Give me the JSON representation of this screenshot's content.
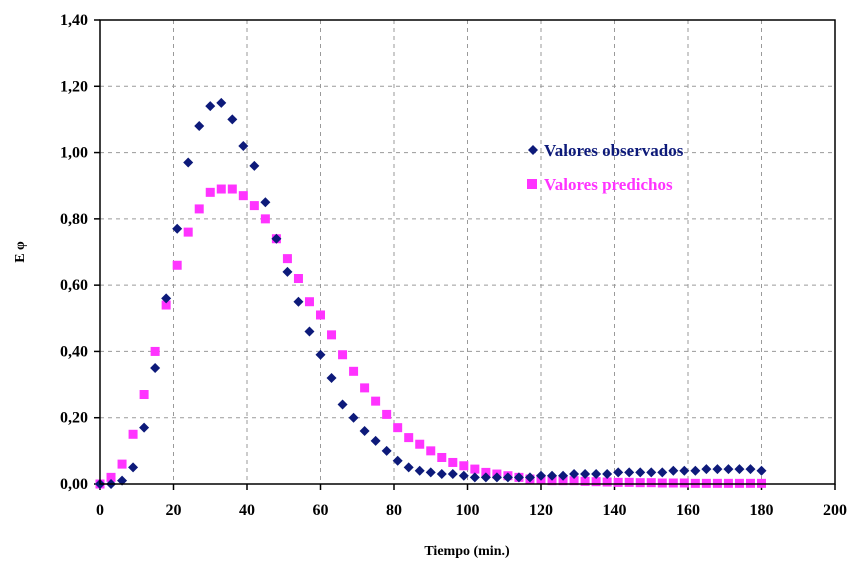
{
  "chart_data": {
    "type": "scatter",
    "xlabel": "Tiempo (min.)",
    "ylabel": "E φ",
    "xlim": [
      0,
      200
    ],
    "ylim": [
      0,
      1.4
    ],
    "x_ticks": [
      "0",
      "20",
      "40",
      "60",
      "80",
      "100",
      "120",
      "140",
      "160",
      "180",
      "200"
    ],
    "y_ticks": [
      "0,00",
      "0,20",
      "0,40",
      "0,60",
      "0,80",
      "1,00",
      "1,20",
      "1,40"
    ],
    "grid": true,
    "legend_position": "right",
    "series": [
      {
        "name": "Valores observados",
        "marker": "diamond",
        "color": "#0d1a7a",
        "x": [
          0,
          3,
          6,
          9,
          12,
          15,
          18,
          21,
          24,
          27,
          30,
          33,
          36,
          39,
          42,
          45,
          48,
          51,
          54,
          57,
          60,
          63,
          66,
          69,
          72,
          75,
          78,
          81,
          84,
          87,
          90,
          93,
          96,
          99,
          102,
          105,
          108,
          111,
          114,
          117,
          120,
          123,
          126,
          129,
          132,
          135,
          138,
          141,
          144,
          147,
          150,
          153,
          156,
          159,
          162,
          165,
          168,
          171,
          174,
          177,
          180
        ],
        "y": [
          0.0,
          0.0,
          0.01,
          0.05,
          0.17,
          0.35,
          0.56,
          0.77,
          0.97,
          1.08,
          1.14,
          1.15,
          1.1,
          1.02,
          0.96,
          0.85,
          0.74,
          0.64,
          0.55,
          0.46,
          0.39,
          0.32,
          0.24,
          0.2,
          0.16,
          0.13,
          0.1,
          0.07,
          0.05,
          0.04,
          0.035,
          0.03,
          0.03,
          0.025,
          0.02,
          0.02,
          0.02,
          0.02,
          0.02,
          0.02,
          0.025,
          0.025,
          0.025,
          0.03,
          0.03,
          0.03,
          0.03,
          0.035,
          0.035,
          0.035,
          0.035,
          0.035,
          0.04,
          0.04,
          0.04,
          0.045,
          0.045,
          0.045,
          0.045,
          0.045,
          0.04
        ]
      },
      {
        "name": "Valores predichos",
        "marker": "square",
        "color": "#ff33ff",
        "x": [
          0,
          3,
          6,
          9,
          12,
          15,
          18,
          21,
          24,
          27,
          30,
          33,
          36,
          39,
          42,
          45,
          48,
          51,
          54,
          57,
          60,
          63,
          66,
          69,
          72,
          75,
          78,
          81,
          84,
          87,
          90,
          93,
          96,
          99,
          102,
          105,
          108,
          111,
          114,
          117,
          120,
          123,
          126,
          129,
          132,
          135,
          138,
          141,
          144,
          147,
          150,
          153,
          156,
          159,
          162,
          165,
          168,
          171,
          174,
          177,
          180
        ],
        "y": [
          0.0,
          0.02,
          0.06,
          0.15,
          0.27,
          0.4,
          0.54,
          0.66,
          0.76,
          0.83,
          0.88,
          0.89,
          0.89,
          0.87,
          0.84,
          0.8,
          0.74,
          0.68,
          0.62,
          0.55,
          0.51,
          0.45,
          0.39,
          0.34,
          0.29,
          0.25,
          0.21,
          0.17,
          0.14,
          0.12,
          0.1,
          0.08,
          0.065,
          0.055,
          0.045,
          0.035,
          0.03,
          0.025,
          0.02,
          0.015,
          0.015,
          0.01,
          0.01,
          0.01,
          0.008,
          0.007,
          0.006,
          0.005,
          0.005,
          0.004,
          0.004,
          0.003,
          0.003,
          0.003,
          0.002,
          0.002,
          0.002,
          0.002,
          0.002,
          0.002,
          0.002
        ]
      }
    ]
  }
}
